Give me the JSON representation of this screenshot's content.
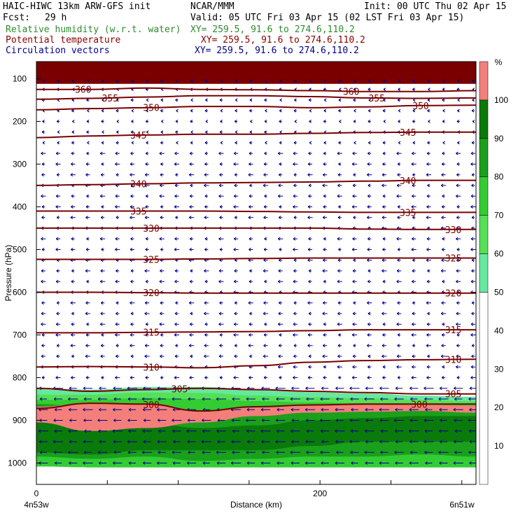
{
  "header": {
    "model": "HAIC-HIWC 13km ARW-GFS init",
    "center": "NCAR/MMM",
    "init": "Init: 00 UTC Thu 02 Apr 15",
    "fcst_label": "Fcst:",
    "fcst_value": "29 h",
    "valid": "Valid: 05 UTC Fri 03 Apr 15 (02 LST Fri 03 Apr 15)",
    "field1": "Relative humidity (w.r.t. water)",
    "field2": "Potential temperature",
    "field3": "Circulation vectors",
    "xy": "XY= 259.5, 91.6 to 274.6,110.2"
  },
  "colors": {
    "rh": "#2e8b2e",
    "theta": "#8b0000",
    "vectors": "#00008b",
    "contour": "#7a0000"
  },
  "chart_data": {
    "type": "contour-cross-section",
    "ylabel": "Pressure (hPa)",
    "xlabel": "Distance (km)",
    "x_ticks": [
      "0",
      "200"
    ],
    "x_left_label": "4n53w",
    "x_right_label": "6n51w",
    "xlim": [
      0,
      310
    ],
    "ylim": [
      1050,
      60
    ],
    "y_ticks": [
      100,
      200,
      300,
      400,
      500,
      600,
      700,
      800,
      900,
      1000
    ],
    "colorbar": {
      "unit": "%",
      "ticks": [
        10,
        20,
        30,
        40,
        50,
        60,
        70,
        80,
        90,
        100
      ],
      "levels": [
        {
          "from": 0,
          "to": 50,
          "color": "#ffffff"
        },
        {
          "from": 50,
          "to": 60,
          "color": "#66e8a0"
        },
        {
          "from": 60,
          "to": 70,
          "color": "#55e055"
        },
        {
          "from": 70,
          "to": 80,
          "color": "#33cc33"
        },
        {
          "from": 80,
          "to": 90,
          "color": "#1aa01a"
        },
        {
          "from": 90,
          "to": 100,
          "color": "#0a7a0a"
        },
        {
          "from": 100,
          "to": 110,
          "color": "#f47f7a"
        }
      ]
    },
    "isentropes": [
      {
        "theta": 360,
        "p": [
          125,
          125,
          122,
          125,
          126,
          128,
          130,
          130,
          128
        ],
        "labels": [
          {
            "x": 33,
            "text": "360"
          },
          {
            "x": 222,
            "text": "360"
          }
        ]
      },
      {
        "theta": 355,
        "p": [
          148,
          146,
          143,
          140,
          140,
          142,
          145,
          146,
          145
        ],
        "labels": [
          {
            "x": 52,
            "text": "355"
          },
          {
            "x": 240,
            "text": "355"
          }
        ]
      },
      {
        "theta": 350,
        "p": [
          173,
          170,
          168,
          165,
          165,
          168,
          166,
          163,
          162
        ],
        "labels": [
          {
            "x": 81,
            "text": "350"
          },
          {
            "x": 271,
            "text": "350"
          }
        ]
      },
      {
        "theta": 345,
        "p": [
          238,
          234,
          232,
          230,
          230,
          228,
          226,
          225,
          225
        ],
        "labels": [
          {
            "x": 72,
            "text": "345"
          },
          {
            "x": 262,
            "text": "345"
          }
        ]
      },
      {
        "theta": 340,
        "p": [
          350,
          348,
          346,
          344,
          343,
          342,
          340,
          338,
          338
        ],
        "labels": [
          {
            "x": 72,
            "text": "340"
          },
          {
            "x": 262,
            "text": "340"
          }
        ]
      },
      {
        "theta": 335,
        "p": [
          410,
          410,
          410,
          410,
          411,
          412,
          413,
          413,
          413
        ],
        "labels": [
          {
            "x": 72,
            "text": "335"
          },
          {
            "x": 262,
            "text": "335"
          }
        ]
      },
      {
        "theta": 330,
        "p": [
          450,
          450,
          450,
          450,
          450,
          450,
          452,
          453,
          453
        ],
        "labels": [
          {
            "x": 81,
            "text": "330"
          },
          {
            "x": 294,
            "text": "330"
          }
        ]
      },
      {
        "theta": 325,
        "p": [
          523,
          523,
          523,
          522,
          521,
          520,
          520,
          520,
          520
        ],
        "labels": [
          {
            "x": 81,
            "text": "325"
          },
          {
            "x": 294,
            "text": "325"
          }
        ]
      },
      {
        "theta": 320,
        "p": [
          600,
          600,
          601,
          602,
          602,
          602,
          602,
          602,
          602
        ],
        "labels": [
          {
            "x": 81,
            "text": "320"
          },
          {
            "x": 294,
            "text": "320"
          }
        ]
      },
      {
        "theta": 315,
        "p": [
          695,
          695,
          694,
          693,
          692,
          690,
          688,
          688,
          688
        ],
        "labels": [
          {
            "x": 81,
            "text": "315"
          },
          {
            "x": 294,
            "text": "315"
          }
        ]
      },
      {
        "theta": 310,
        "p": [
          775,
          774,
          775,
          777,
          772,
          764,
          760,
          758,
          757
        ],
        "labels": [
          {
            "x": 81,
            "text": "310"
          },
          {
            "x": 294,
            "text": "310"
          }
        ]
      },
      {
        "theta": 305,
        "p": [
          825,
          832,
          828,
          825,
          828,
          832,
          835,
          838,
          838
        ],
        "labels": [
          {
            "x": 101,
            "text": "305"
          },
          {
            "x": 294,
            "text": "305"
          }
        ]
      },
      {
        "theta": 300,
        "p": [
          872,
          860,
          862,
          878,
          868,
          864,
          862,
          862,
          862
        ],
        "labels": [
          {
            "x": 81,
            "text": "300"
          },
          {
            "x": 270,
            "text": "300"
          }
        ]
      }
    ],
    "rh_layers": [
      {
        "rh": 55,
        "top": [
          825,
          828,
          822,
          822,
          828,
          834,
          837,
          842,
          845
        ],
        "bottom": [
          1008,
          1010,
          1010,
          1010,
          1010,
          1010,
          1010,
          1010,
          1010
        ]
      },
      {
        "rh": 65,
        "top": [
          840,
          840,
          835,
          836,
          842,
          846,
          848,
          852,
          855
        ],
        "bottom": [
          1008,
          1010,
          1010,
          1010,
          1010,
          1010,
          1010,
          1010,
          1010
        ]
      },
      {
        "rh": 75,
        "top": [
          852,
          852,
          848,
          850,
          855,
          858,
          860,
          862,
          864
        ],
        "bottom": [
          1008,
          1010,
          1010,
          1010,
          1010,
          1010,
          1010,
          1010,
          1010
        ]
      },
      {
        "rh": 85,
        "top": [
          862,
          868,
          866,
          880,
          878,
          870,
          868,
          868,
          870
        ],
        "bottom": [
          985,
          990,
          985,
          995,
          990,
          985,
          985,
          980,
          985
        ]
      },
      {
        "rh": 95,
        "top": [
          900,
          910,
          905,
          918,
          912,
          900,
          895,
          890,
          890
        ],
        "bottom": [
          975,
          980,
          970,
          970,
          970,
          960,
          950,
          950,
          950
        ]
      },
      {
        "rh": 105,
        "top": [
          868,
          860,
          862,
          880,
          870,
          866,
          864,
          864,
          866
        ],
        "bottom": [
          905,
          925,
          918,
          905,
          890,
          882,
          880,
          878,
          882
        ]
      },
      {
        "rh": 105,
        "top": [
          65,
          65,
          65,
          65,
          65,
          65,
          65,
          65,
          65
        ],
        "bottom": [
          112,
          112,
          112,
          112,
          112,
          112,
          112,
          112,
          112
        ]
      }
    ],
    "profile_x": [
      0,
      38.75,
      77.5,
      116.25,
      155,
      193.75,
      232.5,
      271.25,
      310
    ],
    "surface_pressure": 1005,
    "vectors": {
      "direction": "westward",
      "columns": 30,
      "rows_hpa": [
        105,
        125,
        150,
        175,
        200,
        225,
        250,
        275,
        300,
        325,
        350,
        375,
        400,
        425,
        450,
        475,
        500,
        525,
        550,
        575,
        600,
        625,
        650,
        675,
        700,
        725,
        750,
        775,
        800,
        825,
        850,
        875,
        900,
        925,
        950,
        975,
        1000
      ]
    }
  }
}
